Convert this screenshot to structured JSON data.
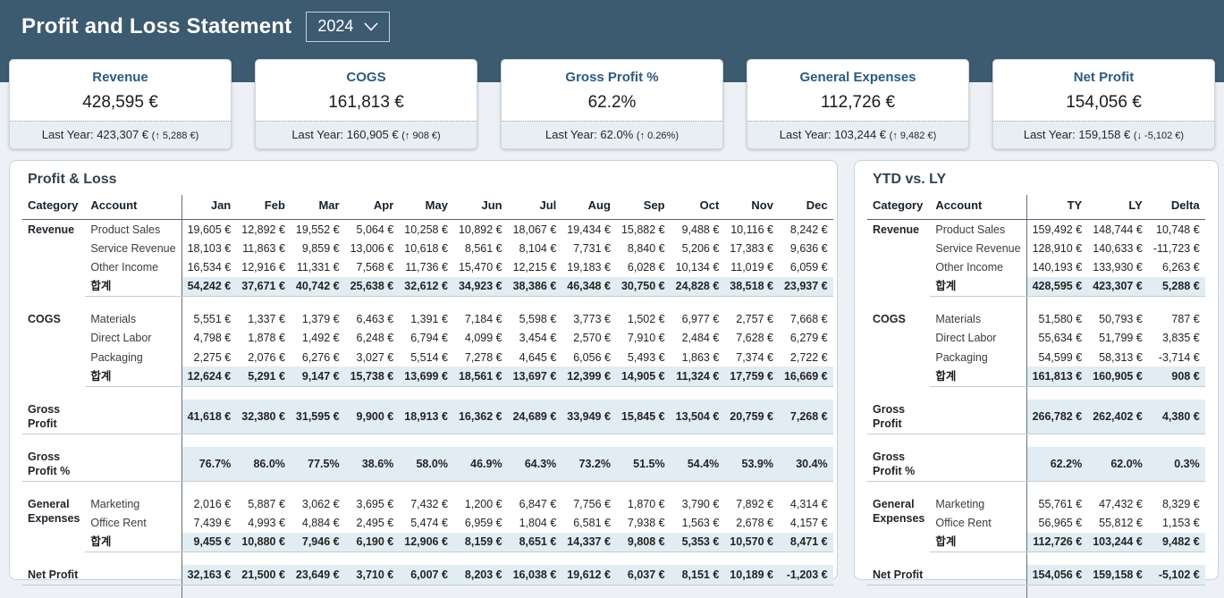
{
  "header": {
    "title": "Profit and Loss Statement",
    "year_selector": {
      "value": "2024"
    }
  },
  "kpi_cards": [
    {
      "title": "Revenue",
      "value": "428,595 €",
      "last_year": "Last Year: 423,307 €",
      "delta": "(↑ 5,288 €)"
    },
    {
      "title": "COGS",
      "value": "161,813 €",
      "last_year": "Last Year: 160,905 €",
      "delta": "(↑ 908 €)"
    },
    {
      "title": "Gross Profit %",
      "value": "62.2%",
      "last_year": "Last Year: 62.0%",
      "delta": "(↑ 0.26%)"
    },
    {
      "title": "General Expenses",
      "value": "112,726 €",
      "last_year": "Last Year: 103,244 €",
      "delta": "(↑ 9,482 €)"
    },
    {
      "title": "Net Profit",
      "value": "154,056 €",
      "last_year": "Last Year: 159,158 €",
      "delta": "(↓ -5,102 €)"
    }
  ],
  "pl_table": {
    "title": "Profit & Loss",
    "columns": [
      "Category",
      "Account",
      "Jan",
      "Feb",
      "Mar",
      "Apr",
      "May",
      "Jun",
      "Jul",
      "Aug",
      "Sep",
      "Oct",
      "Nov",
      "Dec"
    ],
    "sections": [
      {
        "category": "Revenue",
        "rows": [
          {
            "account": "Product Sales",
            "total": false,
            "values": [
              "19,605 €",
              "12,892 €",
              "19,552 €",
              "5,064 €",
              "10,258 €",
              "10,892 €",
              "18,067 €",
              "19,434 €",
              "15,882 €",
              "9,488 €",
              "10,116 €",
              "8,242 €"
            ]
          },
          {
            "account": "Service Revenue",
            "total": false,
            "values": [
              "18,103 €",
              "11,863 €",
              "9,859 €",
              "13,006 €",
              "10,618 €",
              "8,561 €",
              "8,104 €",
              "7,731 €",
              "8,840 €",
              "5,206 €",
              "17,383 €",
              "9,636 €"
            ]
          },
          {
            "account": "Other Income",
            "total": false,
            "values": [
              "16,534 €",
              "12,916 €",
              "11,331 €",
              "7,568 €",
              "11,736 €",
              "15,470 €",
              "12,215 €",
              "19,183 €",
              "6,028 €",
              "10,134 €",
              "11,019 €",
              "6,059 €"
            ]
          },
          {
            "account": "합계",
            "total": true,
            "values": [
              "54,242 €",
              "37,671 €",
              "40,742 €",
              "25,638 €",
              "32,612 €",
              "34,923 €",
              "38,386 €",
              "46,348 €",
              "30,750 €",
              "24,828 €",
              "38,518 €",
              "23,937 €"
            ]
          }
        ]
      },
      {
        "category": "COGS",
        "rows": [
          {
            "account": "Materials",
            "total": false,
            "values": [
              "5,551 €",
              "1,337 €",
              "1,379 €",
              "6,463 €",
              "1,391 €",
              "7,184 €",
              "5,598 €",
              "3,773 €",
              "1,502 €",
              "6,977 €",
              "2,757 €",
              "7,668 €"
            ]
          },
          {
            "account": "Direct Labor",
            "total": false,
            "values": [
              "4,798 €",
              "1,878 €",
              "1,492 €",
              "6,248 €",
              "6,794 €",
              "4,099 €",
              "3,454 €",
              "2,570 €",
              "7,910 €",
              "2,484 €",
              "7,628 €",
              "6,279 €"
            ]
          },
          {
            "account": "Packaging",
            "total": false,
            "values": [
              "2,275 €",
              "2,076 €",
              "6,276 €",
              "3,027 €",
              "5,514 €",
              "7,278 €",
              "4,645 €",
              "6,056 €",
              "5,493 €",
              "1,863 €",
              "7,374 €",
              "2,722 €"
            ]
          },
          {
            "account": "합계",
            "total": true,
            "values": [
              "12,624 €",
              "5,291 €",
              "9,147 €",
              "15,738 €",
              "13,699 €",
              "18,561 €",
              "13,697 €",
              "12,399 €",
              "14,905 €",
              "11,324 €",
              "17,759 €",
              "16,669 €"
            ]
          }
        ]
      },
      {
        "category": "Gross Profit",
        "rows": [
          {
            "account": "",
            "total": true,
            "values": [
              "41,618 €",
              "32,380 €",
              "31,595 €",
              "9,900 €",
              "18,913 €",
              "16,362 €",
              "24,689 €",
              "33,949 €",
              "15,845 €",
              "13,504 €",
              "20,759 €",
              "7,268 €"
            ]
          }
        ]
      },
      {
        "category": "Gross Profit %",
        "rows": [
          {
            "account": "",
            "total": true,
            "values": [
              "76.7%",
              "86.0%",
              "77.5%",
              "38.6%",
              "58.0%",
              "46.9%",
              "64.3%",
              "73.2%",
              "51.5%",
              "54.4%",
              "53.9%",
              "30.4%"
            ]
          }
        ]
      },
      {
        "category": "General Expenses",
        "rows": [
          {
            "account": "Marketing",
            "total": false,
            "values": [
              "2,016 €",
              "5,887 €",
              "3,062 €",
              "3,695 €",
              "7,432 €",
              "1,200 €",
              "6,847 €",
              "7,756 €",
              "1,870 €",
              "3,790 €",
              "7,892 €",
              "4,314 €"
            ]
          },
          {
            "account": "Office Rent",
            "total": false,
            "values": [
              "7,439 €",
              "4,993 €",
              "4,884 €",
              "2,495 €",
              "5,474 €",
              "6,959 €",
              "1,804 €",
              "6,581 €",
              "7,938 €",
              "1,563 €",
              "2,678 €",
              "4,157 €"
            ]
          },
          {
            "account": "합계",
            "total": true,
            "values": [
              "9,455 €",
              "10,880 €",
              "7,946 €",
              "6,190 €",
              "12,906 €",
              "8,159 €",
              "8,651 €",
              "14,337 €",
              "9,808 €",
              "5,353 €",
              "10,570 €",
              "8,471 €"
            ]
          }
        ]
      },
      {
        "category": "Net Profit",
        "rows": [
          {
            "account": "",
            "total": true,
            "values": [
              "32,163 €",
              "21,500 €",
              "23,649 €",
              "3,710 €",
              "6,007 €",
              "8,203 €",
              "16,038 €",
              "19,612 €",
              "6,037 €",
              "8,151 €",
              "10,189 €",
              "-1,203 €"
            ]
          }
        ]
      }
    ]
  },
  "ytd_table": {
    "title": "YTD vs. LY",
    "columns": [
      "Category",
      "Account",
      "TY",
      "LY",
      "Delta"
    ],
    "sections": [
      {
        "category": "Revenue",
        "rows": [
          {
            "account": "Product Sales",
            "total": false,
            "values": [
              "159,492 €",
              "148,744 €",
              "10,748 €"
            ]
          },
          {
            "account": "Service Revenue",
            "total": false,
            "values": [
              "128,910 €",
              "140,633 €",
              "-11,723 €"
            ]
          },
          {
            "account": "Other Income",
            "total": false,
            "values": [
              "140,193 €",
              "133,930 €",
              "6,263 €"
            ]
          },
          {
            "account": "합계",
            "total": true,
            "values": [
              "428,595 €",
              "423,307 €",
              "5,288 €"
            ]
          }
        ]
      },
      {
        "category": "COGS",
        "rows": [
          {
            "account": "Materials",
            "total": false,
            "values": [
              "51,580 €",
              "50,793 €",
              "787 €"
            ]
          },
          {
            "account": "Direct Labor",
            "total": false,
            "values": [
              "55,634 €",
              "51,799 €",
              "3,835 €"
            ]
          },
          {
            "account": "Packaging",
            "total": false,
            "values": [
              "54,599 €",
              "58,313 €",
              "-3,714 €"
            ]
          },
          {
            "account": "합계",
            "total": true,
            "values": [
              "161,813 €",
              "160,905 €",
              "908 €"
            ]
          }
        ]
      },
      {
        "category": "Gross Profit",
        "rows": [
          {
            "account": "",
            "total": true,
            "values": [
              "266,782 €",
              "262,402 €",
              "4,380 €"
            ]
          }
        ]
      },
      {
        "category": "Gross Profit %",
        "rows": [
          {
            "account": "",
            "total": true,
            "values": [
              "62.2%",
              "62.0%",
              "0.3%"
            ]
          }
        ]
      },
      {
        "category": "General Expenses",
        "rows": [
          {
            "account": "Marketing",
            "total": false,
            "values": [
              "55,761 €",
              "47,432 €",
              "8,329 €"
            ]
          },
          {
            "account": "Office Rent",
            "total": false,
            "values": [
              "56,965 €",
              "55,812 €",
              "1,153 €"
            ]
          },
          {
            "account": "합계",
            "total": true,
            "values": [
              "112,726 €",
              "103,244 €",
              "9,482 €"
            ]
          }
        ]
      },
      {
        "category": "Net Profit",
        "rows": [
          {
            "account": "",
            "total": true,
            "values": [
              "154,056 €",
              "159,158 €",
              "-5,102 €"
            ]
          }
        ]
      }
    ]
  }
}
